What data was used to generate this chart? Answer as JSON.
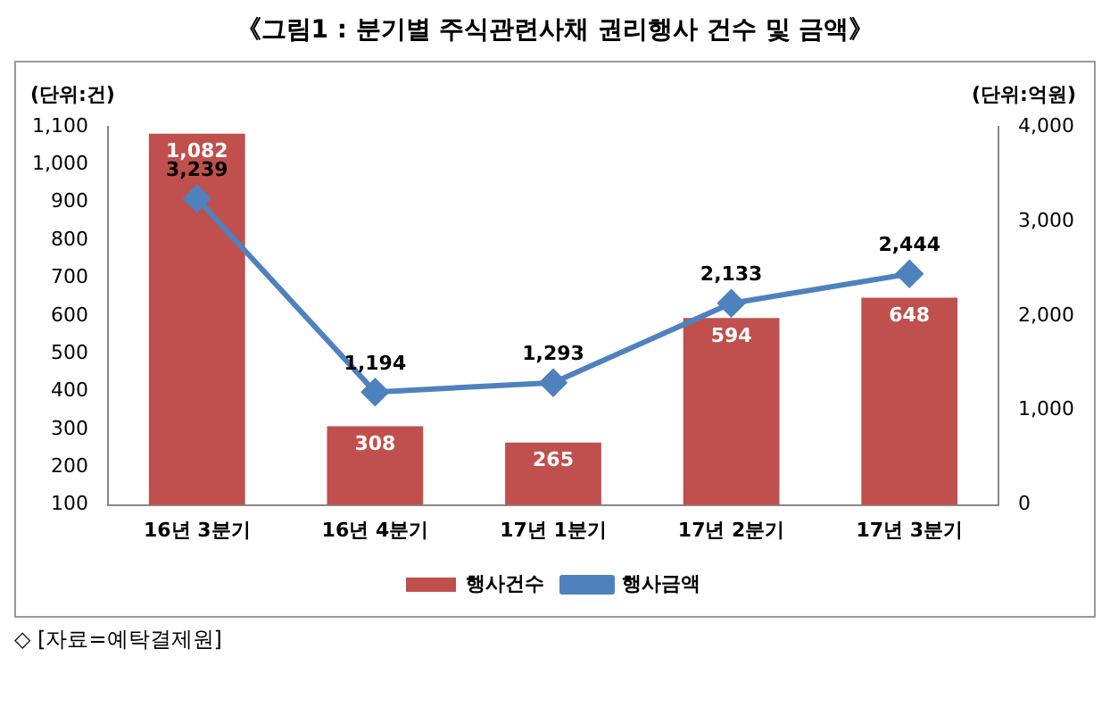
{
  "chart_data": {
    "type": "bar",
    "title": "《그림1 : 분기별 주식관련사채 권리행사 건수 및 금액》",
    "ylabel": "(단위:건)",
    "y2label": "(단위:억원)",
    "annotations": [
      "◇ [자료=예탁결제원]"
    ],
    "categories": [
      "16년 3분기",
      "16년 4분기",
      "17년 1분기",
      "17년 2분기",
      "17년 3분기"
    ],
    "series": [
      {
        "name": "행사건수",
        "color": "#c0504d",
        "values": [
          1082,
          308,
          265,
          594,
          648
        ],
        "value_labels": [
          "1,082",
          "308",
          "265",
          "594",
          "648"
        ]
      },
      {
        "name": "행사금액",
        "type": "line",
        "axis": "y2",
        "color": "#4f81bd",
        "marker": "diamond",
        "values": [
          3239,
          1194,
          1293,
          2133,
          2444
        ],
        "value_labels": [
          "3,239",
          "1,194",
          "1,293",
          "2,133",
          "2,444"
        ]
      }
    ],
    "ylim": [
      100,
      1100
    ],
    "yticks": [
      100,
      200,
      300,
      400,
      500,
      600,
      700,
      800,
      900,
      {
        "value": 1000,
        "label": "1,000"
      },
      {
        "value": 1100,
        "label": "1,100"
      }
    ],
    "y2lim": [
      0,
      4000
    ],
    "y2ticks": [
      0,
      {
        "value": 1000,
        "label": "1,000"
      },
      {
        "value": 2000,
        "label": "2,000"
      },
      {
        "value": 3000,
        "label": "3,000"
      },
      {
        "value": 4000,
        "label": "4,000"
      }
    ],
    "legend": "bottom"
  }
}
